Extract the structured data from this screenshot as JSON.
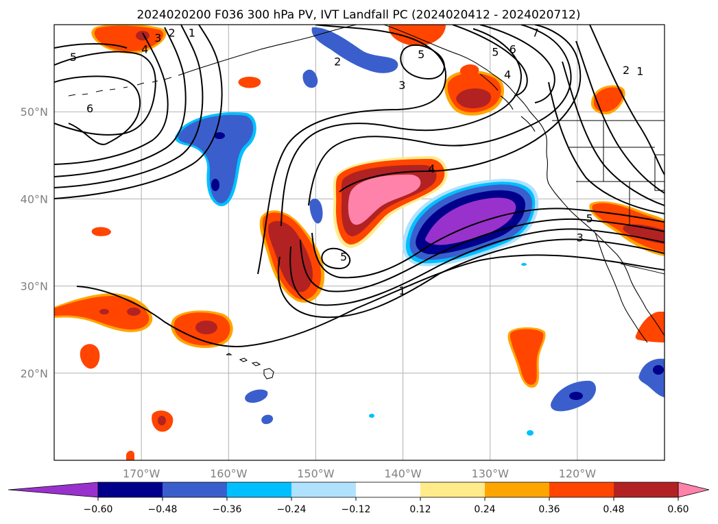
{
  "title": "2024020200 F036 300 hPa PV, IVT Landfall PC (2024020412 - 2024020712)",
  "map": {
    "lon_range": [
      -180,
      -110
    ],
    "lat_range": [
      10,
      60
    ],
    "gridlines": true,
    "lon_ticks": [
      {
        "lon": -170,
        "label": "170°W"
      },
      {
        "lon": -160,
        "label": "160°W"
      },
      {
        "lon": -150,
        "label": "150°W"
      },
      {
        "lon": -140,
        "label": "140°W"
      },
      {
        "lon": -130,
        "label": "130°W"
      },
      {
        "lon": -120,
        "label": "120°W"
      }
    ],
    "lat_ticks": [
      {
        "lat": 20,
        "label": "20°N"
      },
      {
        "lat": 30,
        "label": "30°N"
      },
      {
        "lat": 40,
        "label": "40°N"
      },
      {
        "lat": 50,
        "label": "50°N"
      }
    ],
    "contour_labels": [
      {
        "text": "5",
        "lon": -177.8,
        "lat": 56.3
      },
      {
        "text": "6",
        "lon": -175.9,
        "lat": 50.4
      },
      {
        "text": "4",
        "lon": -169.6,
        "lat": 57.2
      },
      {
        "text": "3",
        "lon": -168.1,
        "lat": 58.5
      },
      {
        "text": "2",
        "lon": -166.5,
        "lat": 59.1
      },
      {
        "text": "1",
        "lon": -164.2,
        "lat": 59.1
      },
      {
        "text": "2",
        "lon": -147.5,
        "lat": 55.8
      },
      {
        "text": "3",
        "lon": -140.1,
        "lat": 53.1
      },
      {
        "text": "5",
        "lon": -137.9,
        "lat": 56.6
      },
      {
        "text": "5",
        "lon": -129.4,
        "lat": 56.9
      },
      {
        "text": "6",
        "lon": -127.4,
        "lat": 57.2
      },
      {
        "text": "7",
        "lon": -124.8,
        "lat": 59.1
      },
      {
        "text": "4",
        "lon": -128.0,
        "lat": 54.3
      },
      {
        "text": "2",
        "lon": -114.4,
        "lat": 54.8
      },
      {
        "text": "1",
        "lon": -112.8,
        "lat": 54.7
      },
      {
        "text": "4",
        "lon": -136.7,
        "lat": 43.5
      },
      {
        "text": "5",
        "lon": -146.8,
        "lat": 33.4
      },
      {
        "text": "1",
        "lon": -140.1,
        "lat": 29.5
      },
      {
        "text": "5",
        "lon": -118.6,
        "lat": 37.8
      },
      {
        "text": "3",
        "lon": -119.7,
        "lat": 35.6
      }
    ]
  },
  "chart_data": {
    "type": "heatmap",
    "title": "2024020200 F036 300 hPa PV, IVT Landfall PC (2024020412 - 2024020712)",
    "fields": {
      "filled": "IVT Landfall PC",
      "contours": "300 hPa PV"
    },
    "colorbar": {
      "ticks": [
        "−0.60",
        "−0.48",
        "−0.36",
        "−0.24",
        "−0.12",
        "0.12",
        "0.24",
        "0.36",
        "0.48",
        "0.60"
      ],
      "levels": [
        -0.72,
        -0.6,
        -0.48,
        -0.36,
        -0.24,
        -0.12,
        0.12,
        0.24,
        0.36,
        0.48,
        0.6,
        0.72
      ],
      "colors": [
        "#9932cc",
        "#00008b",
        "#3a5fcd",
        "#00bfff",
        "#b0e2ff",
        "#ffffff",
        "#ffeb8a",
        "#ffa500",
        "#ff4500",
        "#b22222",
        "#ff82ab"
      ],
      "extend": "both"
    },
    "contour_levels": [
      1,
      2,
      3,
      4,
      5,
      6,
      7
    ]
  }
}
